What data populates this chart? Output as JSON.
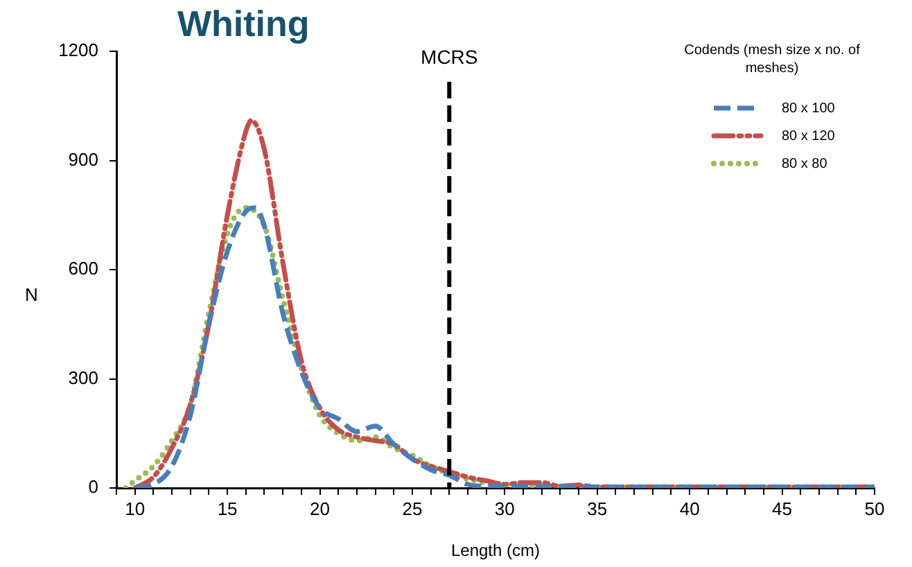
{
  "chart_data": {
    "type": "line",
    "title": "Whiting",
    "xlabel": "Length (cm)",
    "ylabel": "N",
    "legend_title": "Codends (mesh size x no. of meshes)",
    "legend": "top right",
    "grid": false,
    "marker": "none",
    "xlim": [
      9,
      50
    ],
    "ylim": [
      0,
      1200
    ],
    "xticks": [
      {
        "value": 9,
        "label": null
      },
      10,
      {
        "value": 11,
        "label": null
      },
      {
        "value": 12,
        "label": null
      },
      {
        "value": 13,
        "label": null
      },
      {
        "value": 14,
        "label": null
      },
      15,
      {
        "value": 16,
        "label": null
      },
      {
        "value": 17,
        "label": null
      },
      {
        "value": 18,
        "label": null
      },
      {
        "value": 19,
        "label": null
      },
      20,
      {
        "value": 21,
        "label": null
      },
      {
        "value": 22,
        "label": null
      },
      {
        "value": 23,
        "label": null
      },
      {
        "value": 24,
        "label": null
      },
      25,
      {
        "value": 26,
        "label": null
      },
      {
        "value": 27,
        "label": null
      },
      {
        "value": 28,
        "label": null
      },
      {
        "value": 29,
        "label": null
      },
      30,
      {
        "value": 31,
        "label": null
      },
      {
        "value": 32,
        "label": null
      },
      {
        "value": 33,
        "label": null
      },
      {
        "value": 34,
        "label": null
      },
      35,
      {
        "value": 36,
        "label": null
      },
      {
        "value": 37,
        "label": null
      },
      {
        "value": 38,
        "label": null
      },
      {
        "value": 39,
        "label": null
      },
      40,
      {
        "value": 41,
        "label": null
      },
      {
        "value": 42,
        "label": null
      },
      {
        "value": 43,
        "label": null
      },
      {
        "value": 44,
        "label": null
      },
      45,
      {
        "value": 46,
        "label": null
      },
      {
        "value": 47,
        "label": null
      },
      {
        "value": 48,
        "label": null
      },
      {
        "value": 49,
        "label": null
      },
      50
    ],
    "yticks": [
      0,
      300,
      600,
      900,
      1200
    ],
    "ref_lines": [
      {
        "axis": "x",
        "value": 27,
        "label": "MCRS",
        "color": "#000000",
        "line_style": "dashed"
      }
    ],
    "series": [
      {
        "name": "80 x 100",
        "color": "#4a7ebb",
        "line_style": "dashed",
        "x": [
          10,
          11,
          12,
          13,
          14,
          15,
          16,
          16.5,
          17,
          18,
          19,
          20,
          21,
          22,
          23,
          24,
          25,
          26,
          27,
          28,
          29,
          30,
          35,
          40,
          45,
          50
        ],
        "values": [
          0,
          10,
          60,
          200,
          450,
          650,
          760,
          770,
          720,
          480,
          320,
          220,
          190,
          155,
          170,
          120,
          80,
          50,
          35,
          10,
          5,
          5,
          3,
          3,
          3,
          3
        ]
      },
      {
        "name": "80 x 120",
        "color": "#c0504d",
        "line_style": "dashdot",
        "x": [
          10,
          11,
          12,
          13,
          14,
          15,
          16,
          16.3,
          17,
          18,
          19,
          20,
          21,
          22,
          23,
          24,
          25,
          26,
          27,
          28,
          29,
          30,
          31,
          32,
          33,
          34,
          35,
          40,
          45,
          50
        ],
        "values": [
          0,
          30,
          110,
          230,
          450,
          750,
          980,
          1010,
          930,
          620,
          350,
          220,
          160,
          140,
          130,
          120,
          80,
          60,
          45,
          30,
          20,
          10,
          15,
          15,
          5,
          8,
          3,
          3,
          3,
          3
        ]
      },
      {
        "name": "80 x 80",
        "color": "#9bbb59",
        "line_style": "dotted",
        "x": [
          9.5,
          10,
          11,
          12,
          13,
          14,
          15,
          16,
          17,
          18,
          19,
          20,
          21,
          22,
          23,
          24,
          25,
          26,
          27,
          28,
          29,
          30,
          31,
          35,
          40,
          45,
          50
        ],
        "values": [
          0,
          20,
          60,
          130,
          230,
          480,
          700,
          770,
          720,
          520,
          330,
          200,
          150,
          130,
          140,
          110,
          90,
          60,
          40,
          25,
          15,
          10,
          8,
          3,
          3,
          3,
          3
        ]
      }
    ]
  }
}
